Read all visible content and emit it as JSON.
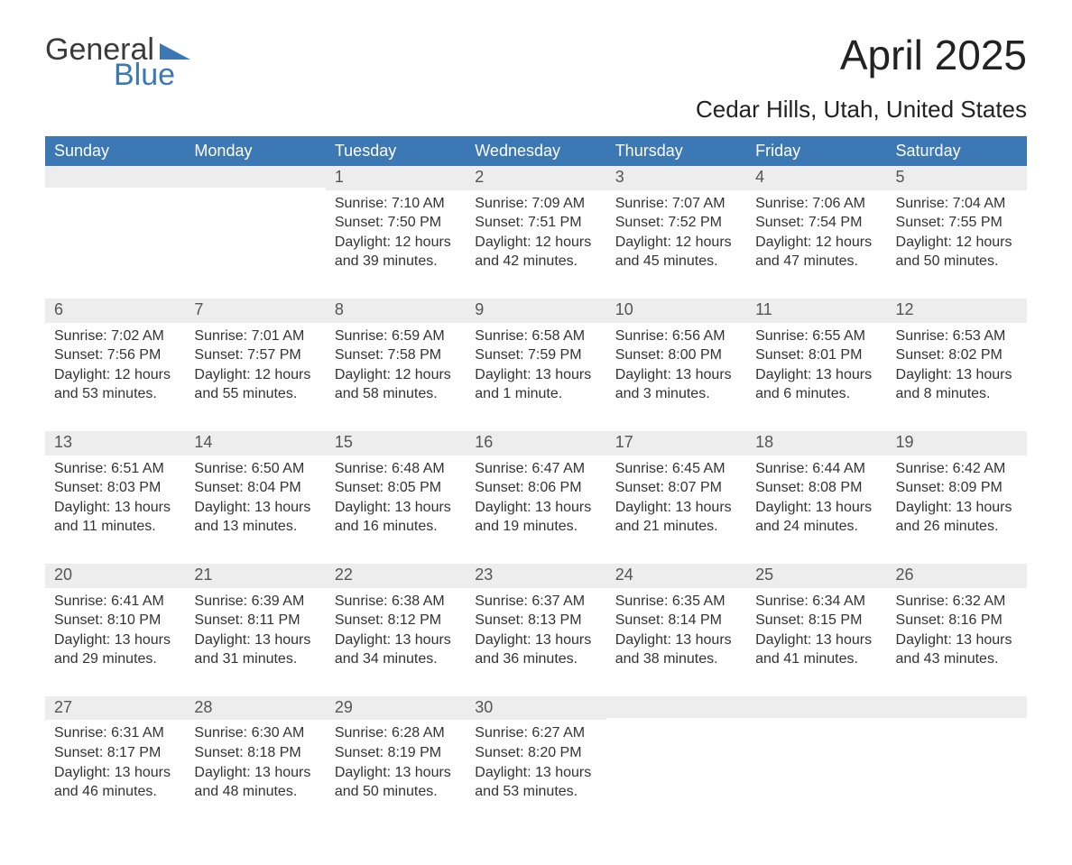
{
  "logo": {
    "line1": "General",
    "line2": "Blue",
    "flag_color": "#3c78b4",
    "text_gray": "#3a3a3a"
  },
  "title": "April 2025",
  "location": "Cedar Hills, Utah, United States",
  "colors": {
    "header_bg": "#3c78b4",
    "header_text": "#ffffff",
    "daynum_bg": "#ededed",
    "daynum_text": "#555555",
    "body_text": "#333333",
    "rule": "#3c78b4",
    "page_bg": "#ffffff"
  },
  "day_headers": [
    "Sunday",
    "Monday",
    "Tuesday",
    "Wednesday",
    "Thursday",
    "Friday",
    "Saturday"
  ],
  "weeks": [
    [
      {
        "date": null
      },
      {
        "date": null
      },
      {
        "date": "1",
        "sunrise": "7:10 AM",
        "sunset": "7:50 PM",
        "daylight": "12 hours and 39 minutes."
      },
      {
        "date": "2",
        "sunrise": "7:09 AM",
        "sunset": "7:51 PM",
        "daylight": "12 hours and 42 minutes."
      },
      {
        "date": "3",
        "sunrise": "7:07 AM",
        "sunset": "7:52 PM",
        "daylight": "12 hours and 45 minutes."
      },
      {
        "date": "4",
        "sunrise": "7:06 AM",
        "sunset": "7:54 PM",
        "daylight": "12 hours and 47 minutes."
      },
      {
        "date": "5",
        "sunrise": "7:04 AM",
        "sunset": "7:55 PM",
        "daylight": "12 hours and 50 minutes."
      }
    ],
    [
      {
        "date": "6",
        "sunrise": "7:02 AM",
        "sunset": "7:56 PM",
        "daylight": "12 hours and 53 minutes."
      },
      {
        "date": "7",
        "sunrise": "7:01 AM",
        "sunset": "7:57 PM",
        "daylight": "12 hours and 55 minutes."
      },
      {
        "date": "8",
        "sunrise": "6:59 AM",
        "sunset": "7:58 PM",
        "daylight": "12 hours and 58 minutes."
      },
      {
        "date": "9",
        "sunrise": "6:58 AM",
        "sunset": "7:59 PM",
        "daylight": "13 hours and 1 minute."
      },
      {
        "date": "10",
        "sunrise": "6:56 AM",
        "sunset": "8:00 PM",
        "daylight": "13 hours and 3 minutes."
      },
      {
        "date": "11",
        "sunrise": "6:55 AM",
        "sunset": "8:01 PM",
        "daylight": "13 hours and 6 minutes."
      },
      {
        "date": "12",
        "sunrise": "6:53 AM",
        "sunset": "8:02 PM",
        "daylight": "13 hours and 8 minutes."
      }
    ],
    [
      {
        "date": "13",
        "sunrise": "6:51 AM",
        "sunset": "8:03 PM",
        "daylight": "13 hours and 11 minutes."
      },
      {
        "date": "14",
        "sunrise": "6:50 AM",
        "sunset": "8:04 PM",
        "daylight": "13 hours and 13 minutes."
      },
      {
        "date": "15",
        "sunrise": "6:48 AM",
        "sunset": "8:05 PM",
        "daylight": "13 hours and 16 minutes."
      },
      {
        "date": "16",
        "sunrise": "6:47 AM",
        "sunset": "8:06 PM",
        "daylight": "13 hours and 19 minutes."
      },
      {
        "date": "17",
        "sunrise": "6:45 AM",
        "sunset": "8:07 PM",
        "daylight": "13 hours and 21 minutes."
      },
      {
        "date": "18",
        "sunrise": "6:44 AM",
        "sunset": "8:08 PM",
        "daylight": "13 hours and 24 minutes."
      },
      {
        "date": "19",
        "sunrise": "6:42 AM",
        "sunset": "8:09 PM",
        "daylight": "13 hours and 26 minutes."
      }
    ],
    [
      {
        "date": "20",
        "sunrise": "6:41 AM",
        "sunset": "8:10 PM",
        "daylight": "13 hours and 29 minutes."
      },
      {
        "date": "21",
        "sunrise": "6:39 AM",
        "sunset": "8:11 PM",
        "daylight": "13 hours and 31 minutes."
      },
      {
        "date": "22",
        "sunrise": "6:38 AM",
        "sunset": "8:12 PM",
        "daylight": "13 hours and 34 minutes."
      },
      {
        "date": "23",
        "sunrise": "6:37 AM",
        "sunset": "8:13 PM",
        "daylight": "13 hours and 36 minutes."
      },
      {
        "date": "24",
        "sunrise": "6:35 AM",
        "sunset": "8:14 PM",
        "daylight": "13 hours and 38 minutes."
      },
      {
        "date": "25",
        "sunrise": "6:34 AM",
        "sunset": "8:15 PM",
        "daylight": "13 hours and 41 minutes."
      },
      {
        "date": "26",
        "sunrise": "6:32 AM",
        "sunset": "8:16 PM",
        "daylight": "13 hours and 43 minutes."
      }
    ],
    [
      {
        "date": "27",
        "sunrise": "6:31 AM",
        "sunset": "8:17 PM",
        "daylight": "13 hours and 46 minutes."
      },
      {
        "date": "28",
        "sunrise": "6:30 AM",
        "sunset": "8:18 PM",
        "daylight": "13 hours and 48 minutes."
      },
      {
        "date": "29",
        "sunrise": "6:28 AM",
        "sunset": "8:19 PM",
        "daylight": "13 hours and 50 minutes."
      },
      {
        "date": "30",
        "sunrise": "6:27 AM",
        "sunset": "8:20 PM",
        "daylight": "13 hours and 53 minutes."
      },
      {
        "date": null
      },
      {
        "date": null
      },
      {
        "date": null
      }
    ]
  ],
  "labels": {
    "sunrise": "Sunrise: ",
    "sunset": "Sunset: ",
    "daylight": "Daylight: "
  }
}
